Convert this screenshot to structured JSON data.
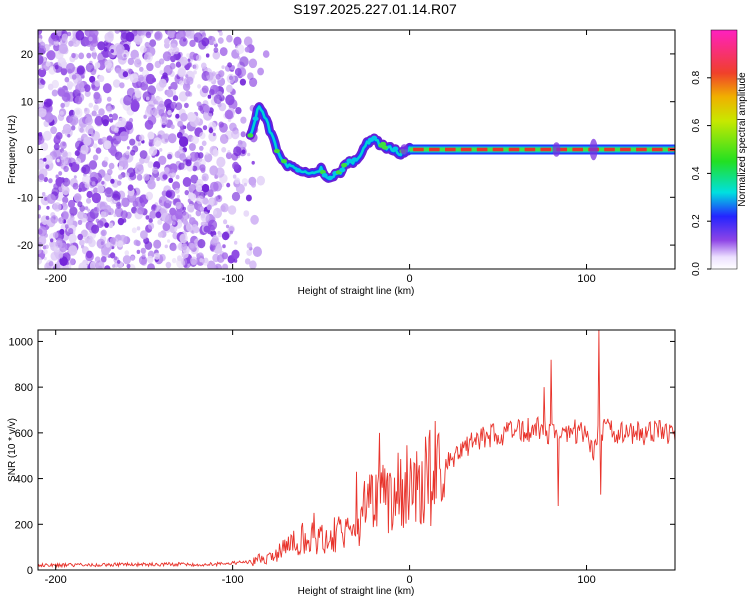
{
  "title": "S197.2025.227.01.14.R07",
  "chart_data": [
    {
      "type": "heatmap",
      "name": "spectrogram",
      "xlabel": "Height of straight line (km)",
      "ylabel": "Frequency (Hz)",
      "xlim": [
        -210,
        150
      ],
      "ylim": [
        -25,
        25
      ],
      "xticks": [
        -200,
        -100,
        0,
        100
      ],
      "yticks": [
        -20,
        -10,
        0,
        10,
        20
      ],
      "colorbar": {
        "label": "Normalized spectral amplitude",
        "range": [
          0,
          1
        ],
        "ticks": [
          "0.0",
          "0.2",
          "0.4",
          "0.6",
          "0.8"
        ]
      },
      "ridge_track": {
        "x": [
          -90,
          -85,
          -80,
          -75,
          -70,
          -65,
          -60,
          -55,
          -50,
          -45,
          -40,
          -35,
          -30,
          -25,
          -20,
          -15,
          -10,
          -5,
          0,
          150
        ],
        "y": [
          3,
          9,
          5,
          0,
          -3,
          -4,
          -5,
          -5,
          -4,
          -6,
          -5,
          -3,
          -2,
          1,
          2,
          1,
          0,
          -1,
          0,
          0
        ]
      }
    },
    {
      "type": "line",
      "name": "snr",
      "xlabel": "Height of straight line (km)",
      "ylabel": "SNR (10 * v/v)",
      "xlim": [
        -210,
        150
      ],
      "ylim": [
        0,
        1050
      ],
      "xticks": [
        -200,
        -100,
        0,
        100
      ],
      "yticks": [
        0,
        200,
        400,
        600,
        800,
        1000
      ],
      "color": "#e8332b",
      "envelope": {
        "x": [
          -210,
          -140,
          -110,
          -90,
          -80,
          -70,
          -60,
          -50,
          -40,
          -30,
          -20,
          -10,
          0,
          10,
          20,
          30,
          40,
          60,
          70,
          78,
          82,
          90,
          100,
          104,
          106,
          110,
          120,
          150
        ],
        "y": [
          20,
          25,
          25,
          35,
          60,
          90,
          140,
          150,
          170,
          220,
          290,
          330,
          360,
          410,
          460,
          530,
          580,
          600,
          620,
          600,
          600,
          610,
          600,
          500,
          600,
          610,
          600,
          600
        ]
      },
      "spikes": [
        {
          "x": -54,
          "y": 250
        },
        {
          "x": -30,
          "y": 430
        },
        {
          "x": -17,
          "y": 600
        },
        {
          "x": 80,
          "y": 920
        },
        {
          "x": 76,
          "y": 800
        },
        {
          "x": 84,
          "y": 280
        },
        {
          "x": 107,
          "y": 1050
        },
        {
          "x": 108,
          "y": 330
        }
      ]
    }
  ]
}
